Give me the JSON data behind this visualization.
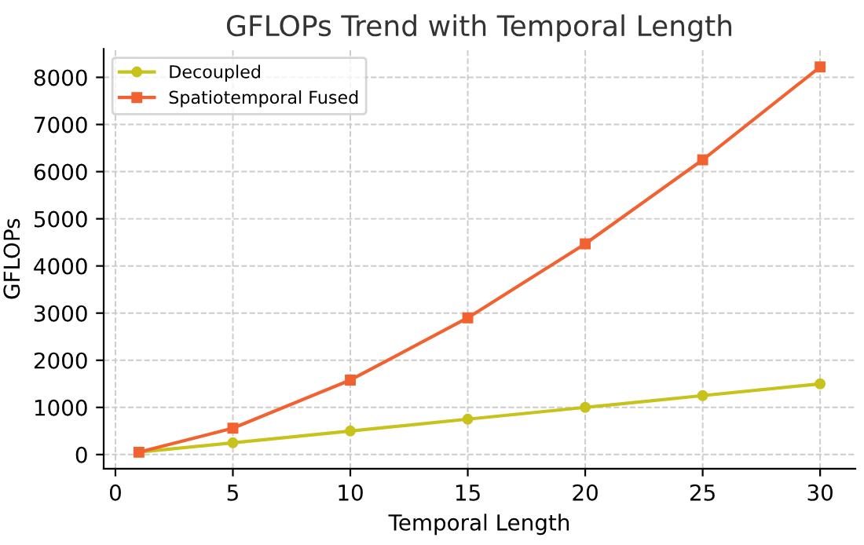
{
  "chart_data": {
    "type": "line",
    "title": "GFLOPs Trend with Temporal Length",
    "xlabel": "Temporal Length",
    "ylabel": "GFLOPs",
    "x": [
      1,
      5,
      10,
      15,
      20,
      25,
      30
    ],
    "series": [
      {
        "name": "Decoupled",
        "color": "#c8c21c",
        "values": [
          50,
          250,
          500,
          750,
          1000,
          1250,
          1500
        ],
        "marker": "circle"
      },
      {
        "name": "Spatiotemporal Fused",
        "color": "#f26230",
        "values": [
          50,
          560,
          1580,
          2900,
          4470,
          6250,
          8220
        ],
        "marker": "square"
      }
    ],
    "xlim": [
      -0.5,
      31.5
    ],
    "xticks": [
      0,
      5,
      10,
      15,
      20,
      25,
      30
    ],
    "ylim": [
      -300,
      8600
    ],
    "yticks": [
      0,
      1000,
      2000,
      3000,
      4000,
      5000,
      6000,
      7000,
      8000
    ],
    "grid": true,
    "legend": "top left",
    "line_style": "solid"
  }
}
